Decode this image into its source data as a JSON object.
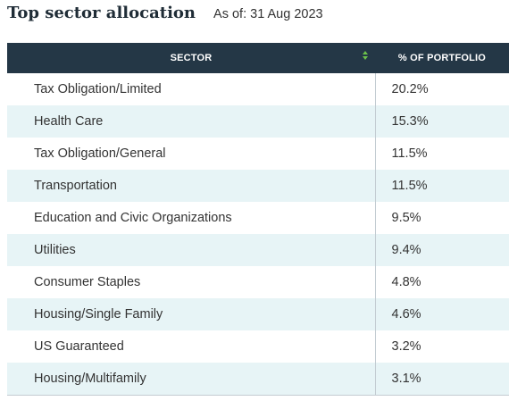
{
  "header": {
    "title": "Top sector allocation",
    "as_of": "As of: 31 Aug 2023"
  },
  "table": {
    "columns": [
      "SECTOR",
      "% OF PORTFOLIO"
    ],
    "sort_icon": "sort-up-down-icon",
    "accent_color": "#6cc24a",
    "header_bg": "#243746",
    "stripe_bg": "#e7f4f6",
    "rows": [
      {
        "sector": "Tax Obligation/Limited",
        "pct": "20.2%"
      },
      {
        "sector": "Health Care",
        "pct": "15.3%"
      },
      {
        "sector": "Tax Obligation/General",
        "pct": "11.5%"
      },
      {
        "sector": "Transportation",
        "pct": "11.5%"
      },
      {
        "sector": "Education and Civic Organizations",
        "pct": "9.5%"
      },
      {
        "sector": "Utilities",
        "pct": "9.4%"
      },
      {
        "sector": "Consumer Staples",
        "pct": "4.8%"
      },
      {
        "sector": "Housing/Single Family",
        "pct": "4.6%"
      },
      {
        "sector": "US Guaranteed",
        "pct": "3.2%"
      },
      {
        "sector": "Housing/Multifamily",
        "pct": "3.1%"
      }
    ]
  }
}
